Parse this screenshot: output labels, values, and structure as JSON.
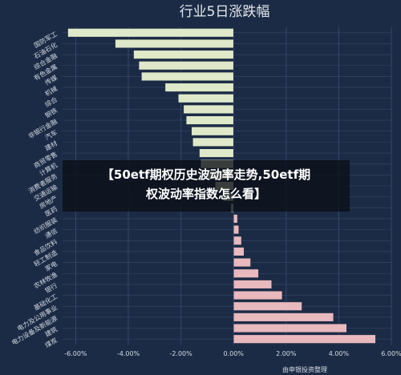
{
  "chart_data": {
    "type": "bar",
    "orientation": "horizontal",
    "title": "行业5日涨跌幅",
    "xlabel": "",
    "ylabel": "",
    "xlim": [
      -6.5,
      6.0
    ],
    "x_ticks": [
      "-6.00%",
      "-4.00%",
      "-2.00%",
      "0.00%",
      "2.00%",
      "4.00%",
      "6.00%"
    ],
    "x_tick_values": [
      -6,
      -4,
      -2,
      0,
      2,
      4,
      6
    ],
    "grid": true,
    "categories": [
      "国防军工",
      "石油石化",
      "综合金融",
      "有色金属",
      "传媒",
      "机械",
      "综合",
      "钢铁",
      "非银行金融",
      "汽车",
      "建材",
      "商贸零售",
      "计算机",
      "消费者服务",
      "交通运输",
      "房地产",
      "医药",
      "纺织服装",
      "通信",
      "食品饮料",
      "轻工制造",
      "家电",
      "农林牧渔",
      "银行",
      "基础化工",
      "电力及公用事业",
      "电力设备及新能源",
      "建筑",
      "煤炭"
    ],
    "values": [
      -6.3,
      -4.5,
      -3.8,
      -3.6,
      -3.5,
      -2.6,
      -2.1,
      -1.9,
      -1.8,
      -1.6,
      -1.55,
      -1.3,
      -1.25,
      -1.0,
      -0.7,
      -0.4,
      -0.1,
      0.15,
      0.2,
      0.3,
      0.4,
      0.65,
      0.95,
      1.45,
      1.85,
      2.6,
      3.8,
      4.3,
      5.4
    ],
    "colors": {
      "negative": "#dfe8c8",
      "positive": "#e8b9bd",
      "grid": "#33476a",
      "text": "#d5dbe4",
      "background": "#1c2b45"
    }
  },
  "overlay": {
    "line1": "【50etf期权历史波动率走势,50etf期",
    "line2": "权波动率指数怎么看】"
  },
  "source": "由申银投资整理"
}
